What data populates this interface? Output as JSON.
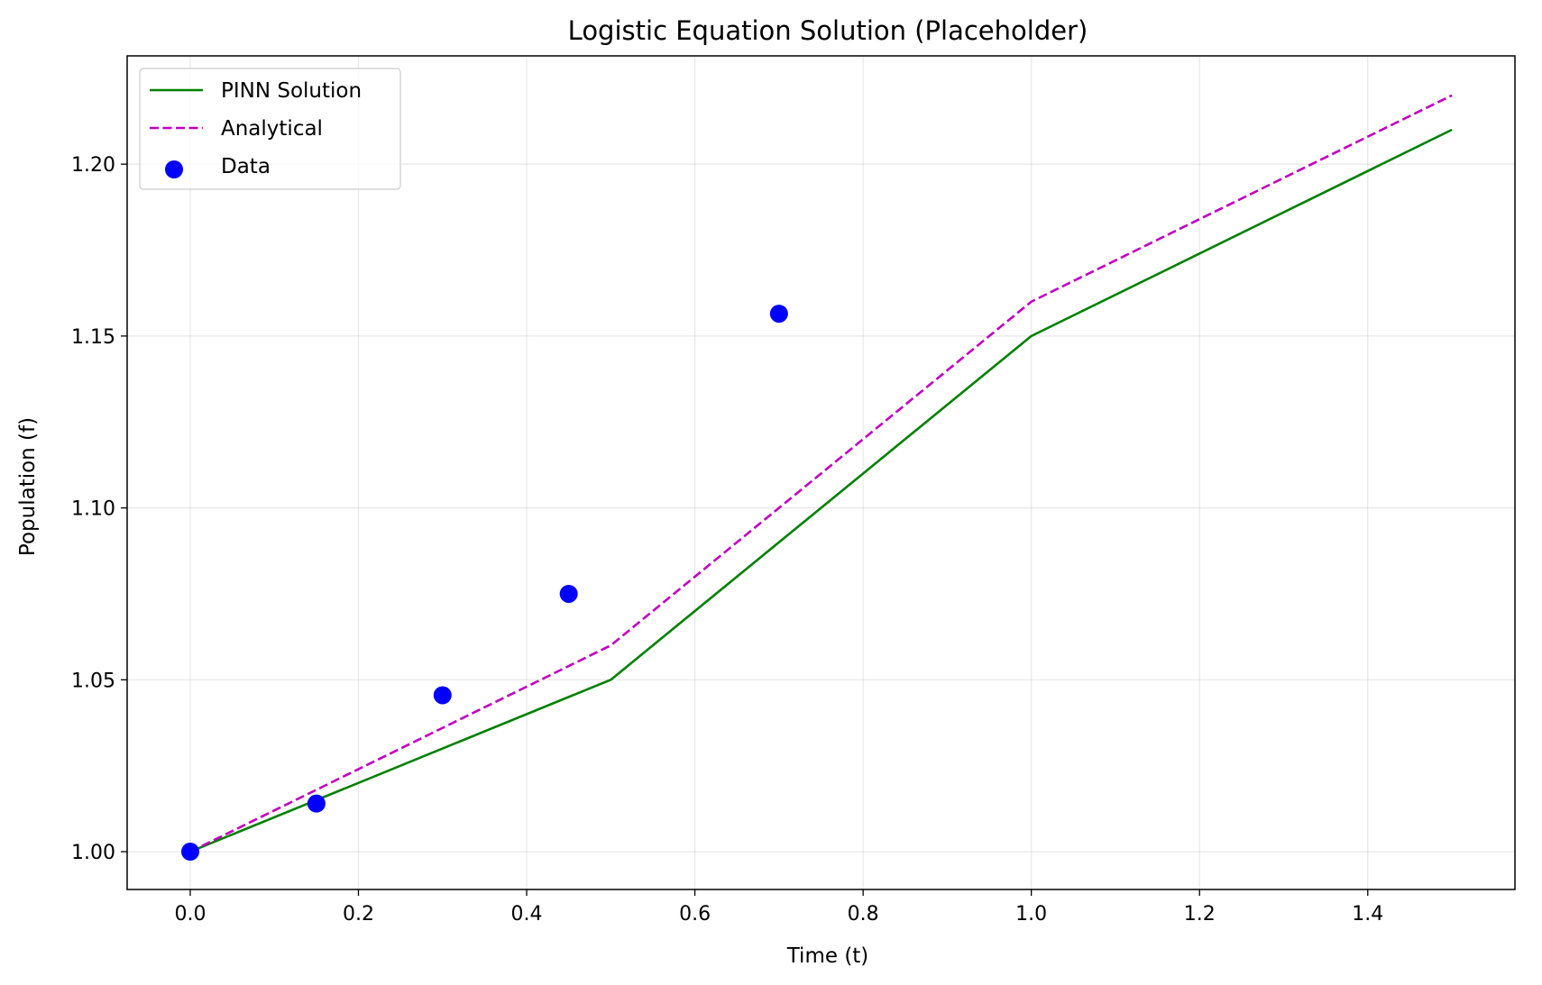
{
  "chart_data": {
    "type": "line",
    "title": "Logistic Equation Solution (Placeholder)",
    "xlabel": "Time (t)",
    "ylabel": "Population (f)",
    "xlim": [
      -0.075,
      1.575
    ],
    "ylim": [
      0.989,
      1.2315
    ],
    "xticks": [
      0.0,
      0.2,
      0.4,
      0.6,
      0.8,
      1.0,
      1.2,
      1.4
    ],
    "xtick_labels": [
      "0.0",
      "0.2",
      "0.4",
      "0.6",
      "0.8",
      "1.0",
      "1.2",
      "1.4"
    ],
    "yticks": [
      1.0,
      1.05,
      1.1,
      1.15,
      1.2
    ],
    "ytick_labels": [
      "1.00",
      "1.05",
      "1.10",
      "1.15",
      "1.20"
    ],
    "grid": true,
    "legend_position": "top-left",
    "series": [
      {
        "name": "PINN Solution",
        "kind": "line",
        "style": "solid",
        "color": "#008000",
        "x": [
          0.0,
          0.5,
          1.0,
          1.5
        ],
        "y": [
          1.0,
          1.05,
          1.15,
          1.21
        ]
      },
      {
        "name": "Analytical",
        "kind": "line",
        "style": "dashed",
        "color": "#bf00bf",
        "x": [
          0.0,
          0.5,
          1.0,
          1.5
        ],
        "y": [
          1.0,
          1.06,
          1.16,
          1.22
        ]
      },
      {
        "name": "Data",
        "kind": "scatter",
        "color": "#0000ff",
        "x": [
          0.0,
          0.15,
          0.3,
          0.45,
          0.7
        ],
        "y": [
          1.0,
          1.014,
          1.0455,
          1.075,
          1.1565
        ]
      }
    ]
  }
}
